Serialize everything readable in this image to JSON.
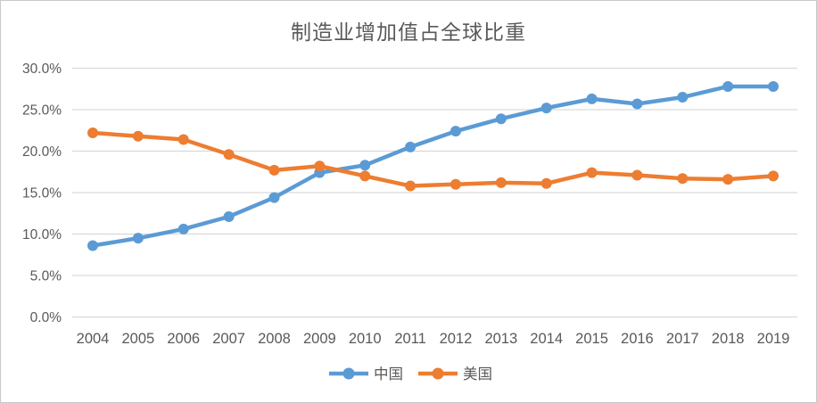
{
  "chart_data": {
    "type": "line",
    "title": "制造业增加值占全球比重",
    "categories": [
      "2004",
      "2005",
      "2006",
      "2007",
      "2008",
      "2009",
      "2010",
      "2011",
      "2012",
      "2013",
      "2014",
      "2015",
      "2016",
      "2017",
      "2018",
      "2019"
    ],
    "series": [
      {
        "id": "china",
        "name": "中国",
        "color": "#5B9BD5",
        "values": [
          8.6,
          9.5,
          10.6,
          12.1,
          14.4,
          17.4,
          18.3,
          20.5,
          22.4,
          23.9,
          25.2,
          26.3,
          25.7,
          26.5,
          27.8,
          27.8
        ]
      },
      {
        "id": "us",
        "name": "美国",
        "color": "#ED7D31",
        "values": [
          22.2,
          21.8,
          21.4,
          19.6,
          17.7,
          18.2,
          17.0,
          15.8,
          16.0,
          16.2,
          16.1,
          17.4,
          17.1,
          16.7,
          16.6,
          17.0
        ]
      }
    ],
    "y_axis": {
      "min": 0,
      "max": 30,
      "ticks": [
        0,
        5,
        10,
        15,
        20,
        25,
        30
      ],
      "tick_labels": [
        "0.0%",
        "5.0%",
        "10.0%",
        "15.0%",
        "20.0%",
        "25.0%",
        "30.0%"
      ]
    },
    "xlabel": "",
    "ylabel": "",
    "legend_position": "bottom",
    "grid": "horizontal",
    "style": {
      "grid_color": "#D9D9D9",
      "text_color": "#595959",
      "title_color": "#595959",
      "background": "#FFFFFF",
      "border_color": "#C9C9C9"
    }
  }
}
